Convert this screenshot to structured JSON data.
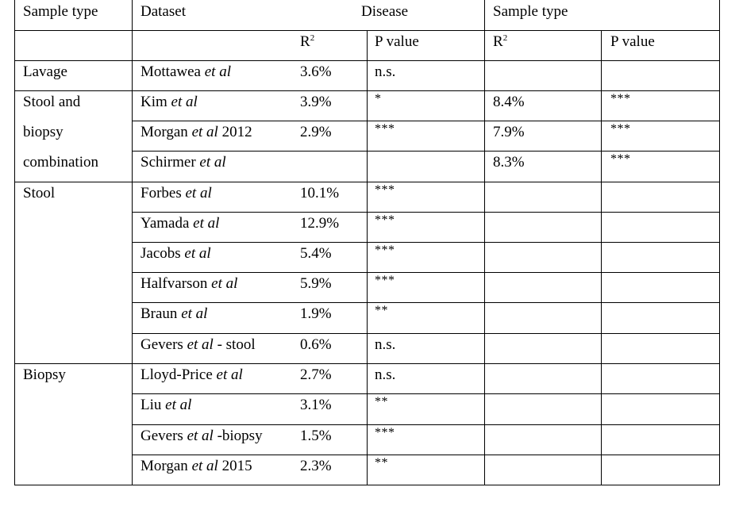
{
  "header": {
    "col_sample_type": "Sample type",
    "col_dataset": "Dataset",
    "group_disease": "Disease",
    "group_sample_type": "Sample type",
    "r_label": "R",
    "r_sup": "2",
    "pvalue_label": "P value"
  },
  "groups": [
    {
      "label_lines": [
        "Lavage"
      ]
    },
    {
      "label_lines": [
        "Stool and",
        "biopsy",
        "combination"
      ]
    },
    {
      "label_lines": [
        "Stool"
      ]
    },
    {
      "label_lines": [
        "Biopsy"
      ]
    }
  ],
  "rows": [
    {
      "author": "Mottawea",
      "etal": "et al",
      "suffix": "",
      "disease_r2": "3.6%",
      "disease_p": "n.s.",
      "sample_r2": "",
      "sample_p": ""
    },
    {
      "author": "Kim",
      "etal": "et al",
      "suffix": "",
      "disease_r2": "3.9%",
      "disease_p": "*",
      "sample_r2": "8.4%",
      "sample_p": "***"
    },
    {
      "author": "Morgan",
      "etal": "et al",
      "suffix": " 2012",
      "disease_r2": "2.9%",
      "disease_p": "***",
      "sample_r2": "7.9%",
      "sample_p": "***"
    },
    {
      "author": "Schirmer",
      "etal": "et al",
      "suffix": "",
      "disease_r2": "",
      "disease_p": "",
      "sample_r2": "8.3%",
      "sample_p": "***"
    },
    {
      "author": "Forbes",
      "etal": "et al",
      "suffix": "",
      "disease_r2": "10.1%",
      "disease_p": "***",
      "sample_r2": "",
      "sample_p": ""
    },
    {
      "author": "Yamada",
      "etal": "et al",
      "suffix": "",
      "disease_r2": "12.9%",
      "disease_p": "***",
      "sample_r2": "",
      "sample_p": ""
    },
    {
      "author": "Jacobs",
      "etal": "et al",
      "suffix": "",
      "disease_r2": "5.4%",
      "disease_p": "***",
      "sample_r2": "",
      "sample_p": ""
    },
    {
      "author": "Halfvarson",
      "etal": "et al",
      "suffix": "",
      "disease_r2": "5.9%",
      "disease_p": "***",
      "sample_r2": "",
      "sample_p": ""
    },
    {
      "author": "Braun",
      "etal": "et al",
      "suffix": "",
      "disease_r2": "1.9%",
      "disease_p": "**",
      "sample_r2": "",
      "sample_p": ""
    },
    {
      "author": "Gevers",
      "etal": "et al",
      "suffix": " - stool",
      "disease_r2": "0.6%",
      "disease_p": "n.s.",
      "sample_r2": "",
      "sample_p": ""
    },
    {
      "author": "Lloyd-Price",
      "etal": "et al",
      "suffix": "",
      "disease_r2": "2.7%",
      "disease_p": "n.s.",
      "sample_r2": "",
      "sample_p": ""
    },
    {
      "author": "Liu",
      "etal": "et al",
      "suffix": "",
      "disease_r2": "3.1%",
      "disease_p": "**",
      "sample_r2": "",
      "sample_p": ""
    },
    {
      "author": "Gevers",
      "etal": "et al",
      "suffix": " -biopsy",
      "disease_r2": "1.5%",
      "disease_p": "***",
      "sample_r2": "",
      "sample_p": ""
    },
    {
      "author": "Morgan",
      "etal": "et al",
      "suffix": " 2015",
      "disease_r2": "2.3%",
      "disease_p": "**",
      "sample_r2": "",
      "sample_p": ""
    }
  ]
}
